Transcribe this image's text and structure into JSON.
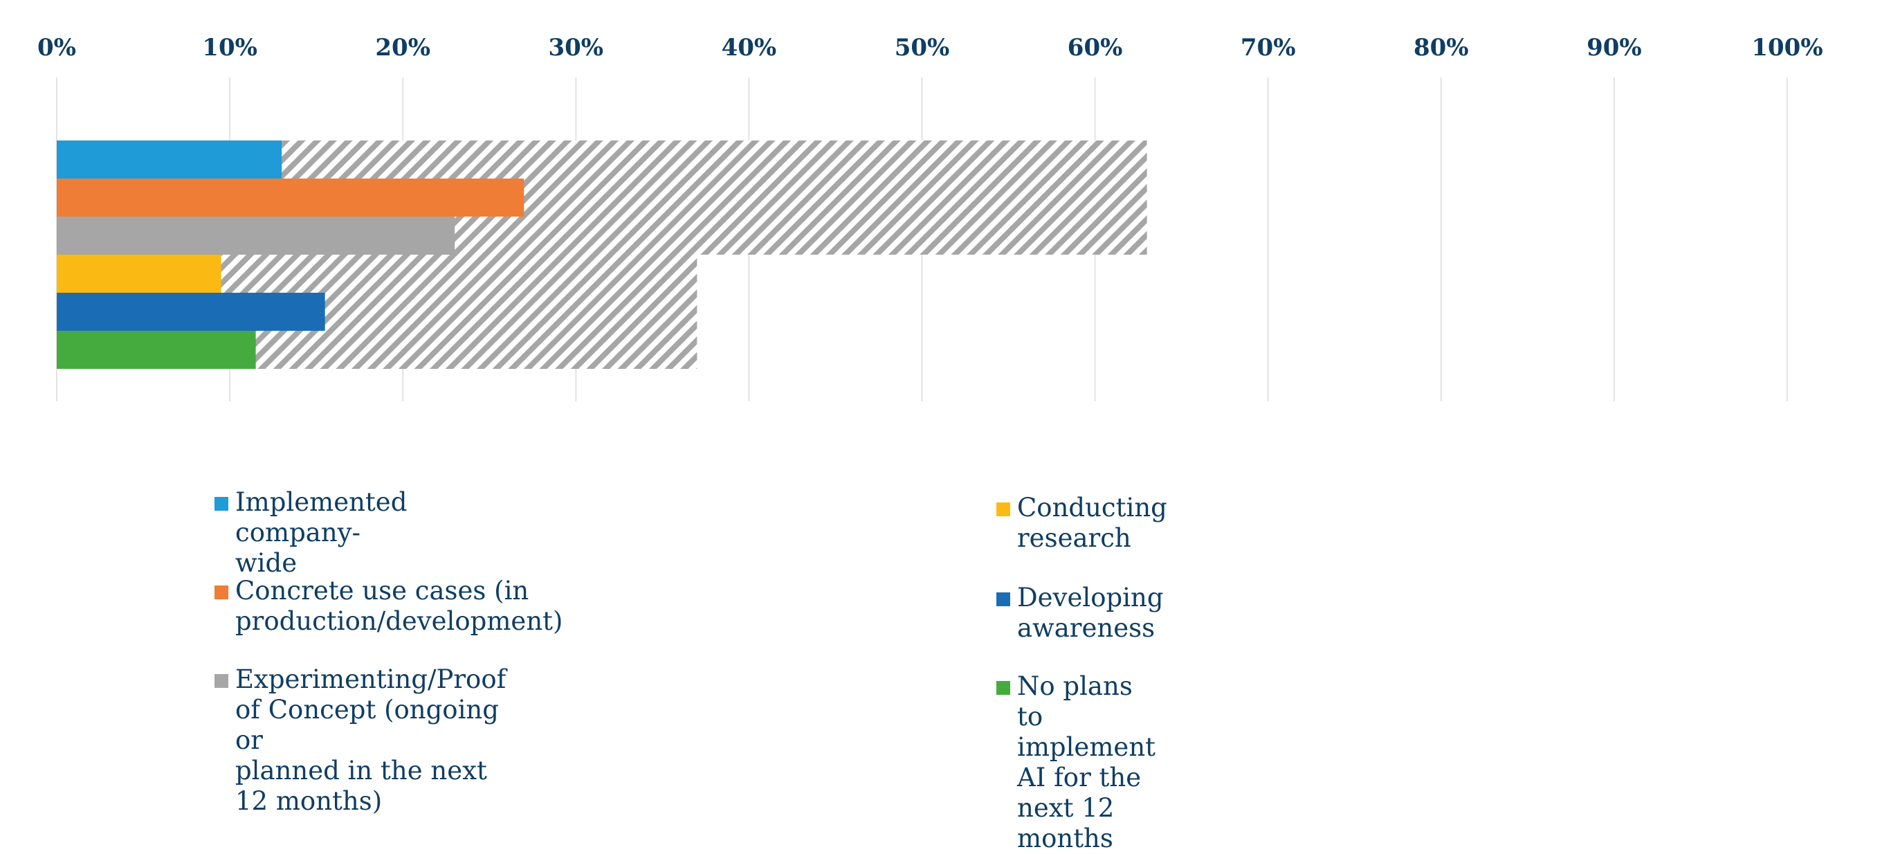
{
  "chart_data": {
    "type": "bar",
    "orientation": "horizontal",
    "stacked_groups": true,
    "xlim": [
      0,
      100
    ],
    "x_ticks": [
      "0%",
      "10%",
      "20%",
      "30%",
      "40%",
      "50%",
      "60%",
      "70%",
      "80%",
      "90%",
      "100%"
    ],
    "axis_position": "top",
    "grid": true,
    "legend_position": "bottom",
    "groups": [
      {
        "total": 63,
        "pattern": "diagonal-hatch",
        "bars": [
          {
            "series": "Implemented company-wide",
            "value": 13
          },
          {
            "series": "Concrete use cases (in production/development)",
            "value": 27
          },
          {
            "series": "Experimenting/Proof of Concept (ongoing or planned in the next 12 months)",
            "value": 23
          }
        ]
      },
      {
        "total": 37,
        "pattern": "diagonal-hatch",
        "bars": [
          {
            "series": "Conducting research",
            "value": 9.5
          },
          {
            "series": "Developing awareness",
            "value": 15.5
          },
          {
            "series": "No plans to implement AI for the next 12 months",
            "value": 11.5
          }
        ]
      }
    ],
    "series": [
      {
        "name": "Implemented company-wide",
        "color": "#1f9bd7"
      },
      {
        "name": "Concrete use cases (in production/development)",
        "color": "#ef7d35"
      },
      {
        "name": "Experimenting/Proof of Concept (ongoing or planned in the next 12 months)",
        "color": "#a6a6a6"
      },
      {
        "name": "Conducting research",
        "color": "#fbb913"
      },
      {
        "name": "Developing awareness",
        "color": "#1a6db5"
      },
      {
        "name": "No plans to implement AI for the next 12 months",
        "color": "#46ab3e"
      }
    ],
    "hatch_color": "#a6a6a6",
    "grid_color": "#e3e3e3",
    "text_color": "#0f3d63"
  },
  "legend": [
    {
      "line1": "Implemented company-wide",
      "line2": ""
    },
    {
      "line1": "Concrete use cases (in production/development)",
      "line2": ""
    },
    {
      "line1": "Experimenting/Proof of Concept (ongoing or",
      "line2": "planned in the next 12 months)"
    },
    {
      "line1": "Conducting research",
      "line2": ""
    },
    {
      "line1": "Developing awareness",
      "line2": ""
    },
    {
      "line1": "No plans to implement AI for the next 12 months",
      "line2": ""
    }
  ]
}
